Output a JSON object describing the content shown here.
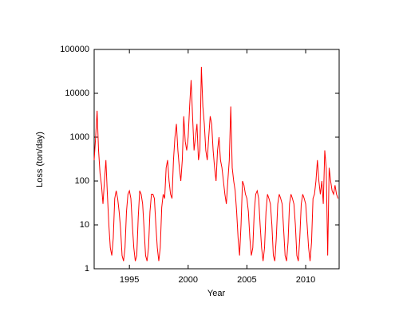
{
  "chart_data": {
    "type": "line",
    "x_label": "Year",
    "y_label": "Loss (ton/day)",
    "color": "#ff0000",
    "y_scale": "log",
    "xlim": [
      1992,
      2012.85
    ],
    "xticks": [
      1995,
      2000,
      2005,
      2010
    ],
    "ylim": [
      1,
      100000
    ],
    "yticks": [
      1,
      10,
      100,
      1000,
      10000,
      100000
    ],
    "x": [
      1992,
      1992.125,
      1992.25,
      1992.375,
      1992.5,
      1992.625,
      1992.75,
      1992.875,
      1993,
      1993.125,
      1993.25,
      1993.375,
      1993.5,
      1993.625,
      1993.75,
      1993.875,
      1994,
      1994.125,
      1994.25,
      1994.375,
      1994.5,
      1994.625,
      1994.75,
      1994.875,
      1995,
      1995.125,
      1995.25,
      1995.375,
      1995.5,
      1995.625,
      1995.75,
      1995.875,
      1996,
      1996.125,
      1996.25,
      1996.375,
      1996.5,
      1996.625,
      1996.75,
      1996.875,
      1997,
      1997.125,
      1997.25,
      1997.375,
      1997.5,
      1997.625,
      1997.75,
      1997.875,
      1998,
      1998.125,
      1998.25,
      1998.375,
      1998.5,
      1998.625,
      1998.75,
      1998.875,
      1999,
      1999.125,
      1999.25,
      1999.375,
      1999.5,
      1999.625,
      1999.75,
      1999.875,
      2000,
      2000.125,
      2000.25,
      2000.375,
      2000.5,
      2000.625,
      2000.75,
      2000.875,
      2001,
      2001.125,
      2001.25,
      2001.375,
      2001.5,
      2001.625,
      2001.75,
      2001.875,
      2002,
      2002.125,
      2002.25,
      2002.375,
      2002.5,
      2002.625,
      2002.75,
      2002.875,
      2003,
      2003.125,
      2003.25,
      2003.375,
      2003.5,
      2003.625,
      2003.75,
      2003.875,
      2004,
      2004.125,
      2004.25,
      2004.375,
      2004.5,
      2004.625,
      2004.75,
      2004.875,
      2005,
      2005.125,
      2005.25,
      2005.375,
      2005.5,
      2005.625,
      2005.75,
      2005.875,
      2006,
      2006.125,
      2006.25,
      2006.375,
      2006.5,
      2006.625,
      2006.75,
      2006.875,
      2007,
      2007.125,
      2007.25,
      2007.375,
      2007.5,
      2007.625,
      2007.75,
      2007.875,
      2008,
      2008.125,
      2008.25,
      2008.375,
      2008.5,
      2008.625,
      2008.75,
      2008.875,
      2009,
      2009.125,
      2009.25,
      2009.375,
      2009.5,
      2009.625,
      2009.75,
      2009.875,
      2010,
      2010.125,
      2010.25,
      2010.375,
      2010.5,
      2010.625,
      2010.75,
      2010.875,
      2011,
      2011.125,
      2011.25,
      2011.375,
      2011.5,
      2011.625,
      2011.75,
      2011.875,
      2012,
      2012.125,
      2012.25,
      2012.375,
      2012.5,
      2012.625,
      2012.75
    ],
    "values": [
      300,
      1000,
      4000,
      500,
      150,
      80,
      30,
      100,
      300,
      50,
      10,
      3,
      2,
      5,
      40,
      60,
      40,
      20,
      8,
      2,
      1.5,
      3,
      20,
      50,
      60,
      40,
      10,
      3,
      1.5,
      2,
      15,
      60,
      50,
      30,
      8,
      2,
      1.5,
      3,
      20,
      50,
      50,
      40,
      10,
      3,
      1.5,
      3,
      25,
      50,
      40,
      200,
      300,
      100,
      50,
      40,
      300,
      1000,
      2000,
      500,
      200,
      100,
      300,
      3000,
      800,
      500,
      1000,
      5000,
      20000,
      3000,
      500,
      1000,
      2000,
      300,
      500,
      40000,
      5000,
      2000,
      500,
      300,
      1000,
      3000,
      2000,
      500,
      200,
      100,
      500,
      1000,
      300,
      200,
      100,
      50,
      30,
      100,
      300,
      5000,
      200,
      100,
      60,
      20,
      5,
      2,
      10,
      100,
      80,
      50,
      40,
      20,
      5,
      2,
      3,
      20,
      50,
      60,
      40,
      10,
      3,
      1.5,
      3,
      20,
      50,
      40,
      30,
      10,
      2,
      1.5,
      5,
      30,
      50,
      40,
      30,
      8,
      2,
      1.5,
      4,
      30,
      50,
      40,
      30,
      10,
      2,
      1.5,
      5,
      30,
      50,
      40,
      30,
      10,
      3,
      1.5,
      4,
      40,
      50,
      100,
      300,
      100,
      50,
      100,
      30,
      500,
      200,
      2,
      200,
      100,
      60,
      50,
      80,
      50,
      40
    ]
  }
}
